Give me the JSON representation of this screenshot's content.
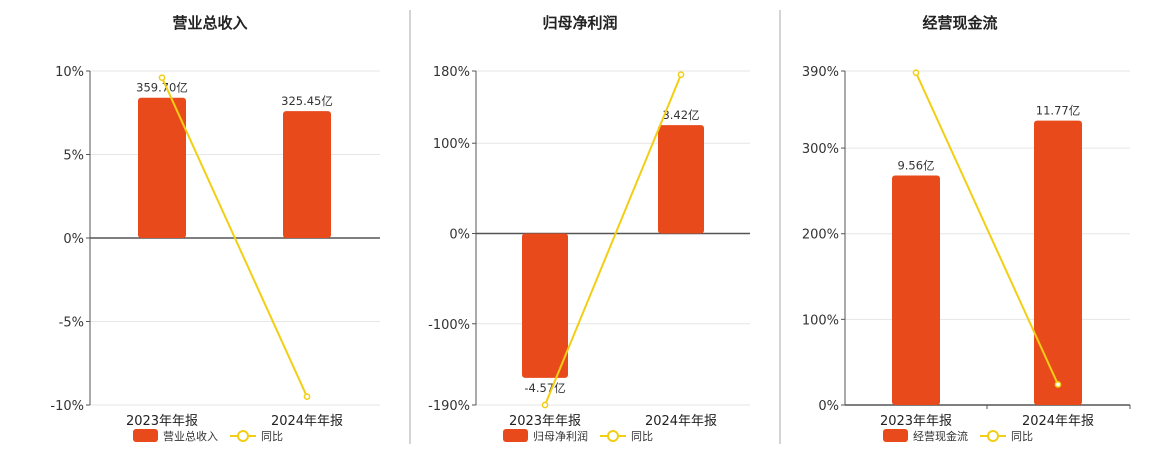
{
  "colors": {
    "bar": "#E84A1B",
    "line": "#F2CE14",
    "divider": "#aaaaaa",
    "grid": "#e6e6e6",
    "axis": "#555555"
  },
  "chart_data": [
    {
      "type": "bar",
      "title": "营业总收入",
      "categories": [
        "2023年年报",
        "2024年年报"
      ],
      "series": [
        {
          "name": "营业总收入",
          "kind": "bar",
          "labels": [
            "359.70亿",
            "325.45亿"
          ],
          "values": [
            8.4,
            7.6
          ]
        },
        {
          "name": "同比",
          "kind": "line",
          "values": [
            9.6,
            -9.5
          ]
        }
      ],
      "yticks": [
        10,
        5,
        0,
        -5,
        -10
      ],
      "ytick_labels": [
        "10%",
        "5%",
        "0%",
        "-5%",
        "-10%"
      ],
      "ylim": [
        -10,
        10
      ]
    },
    {
      "type": "bar",
      "title": "归母净利润",
      "categories": [
        "2023年年报",
        "2024年年报"
      ],
      "series": [
        {
          "name": "归母净利润",
          "kind": "bar",
          "labels": [
            "-4.57亿",
            "3.42亿"
          ],
          "values": [
            -160,
            120
          ]
        },
        {
          "name": "同比",
          "kind": "line",
          "values": [
            -190,
            176
          ]
        }
      ],
      "yticks": [
        180,
        100,
        0,
        -100,
        -190
      ],
      "ytick_labels": [
        "180%",
        "100%",
        "0%",
        "-100%",
        "-190%"
      ],
      "ylim": [
        -190,
        180
      ]
    },
    {
      "type": "bar",
      "title": "经营现金流",
      "categories": [
        "2023年年报",
        "2024年年报"
      ],
      "series": [
        {
          "name": "经营现金流",
          "kind": "bar",
          "labels": [
            "9.56亿",
            "11.77亿"
          ],
          "values": [
            268,
            332
          ]
        },
        {
          "name": "同比",
          "kind": "line",
          "values": [
            388,
            24
          ]
        }
      ],
      "yticks": [
        390,
        300,
        200,
        100,
        0
      ],
      "ytick_labels": [
        "390%",
        "300%",
        "200%",
        "100%",
        "0%"
      ],
      "ylim": [
        0,
        390
      ]
    }
  ]
}
